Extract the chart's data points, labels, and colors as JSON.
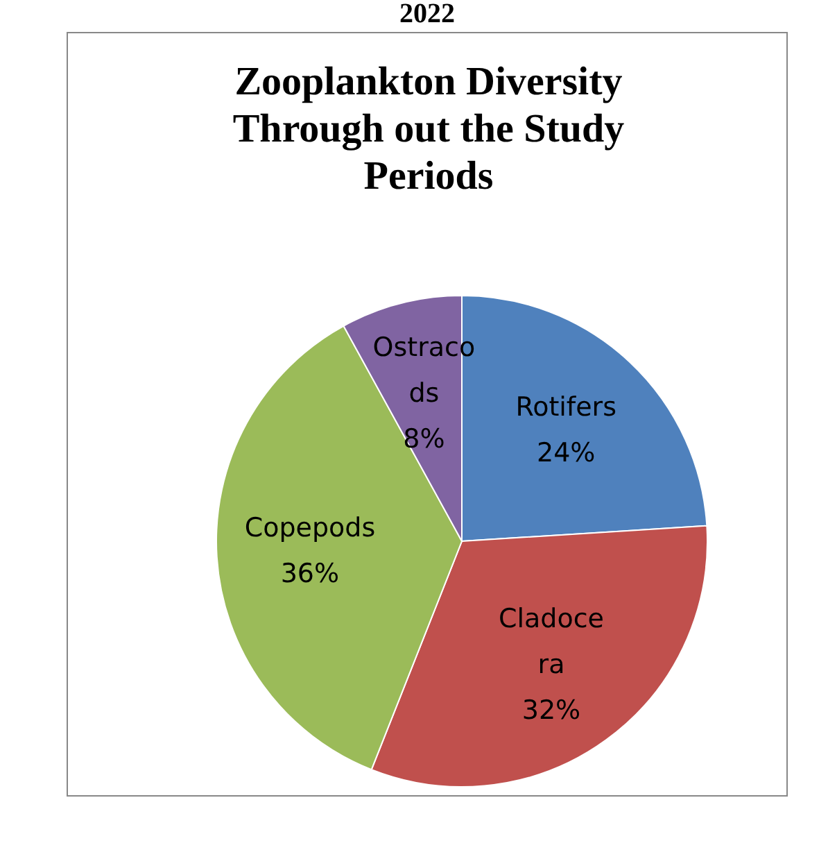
{
  "chart_data": {
    "type": "pie",
    "title": "Zooplankton Diversity Through out the Study Periods",
    "annotations": [
      "2022"
    ],
    "categories": [
      "Rotifers",
      "Cladocera",
      "Copepods",
      "Ostracods"
    ],
    "values": [
      24,
      32,
      36,
      8
    ],
    "colors": [
      "#4f81bd",
      "#c0504d",
      "#9bbb59",
      "#8064a2"
    ],
    "value_labels": [
      "24%",
      "32%",
      "36%",
      "8%"
    ],
    "legend": false
  }
}
